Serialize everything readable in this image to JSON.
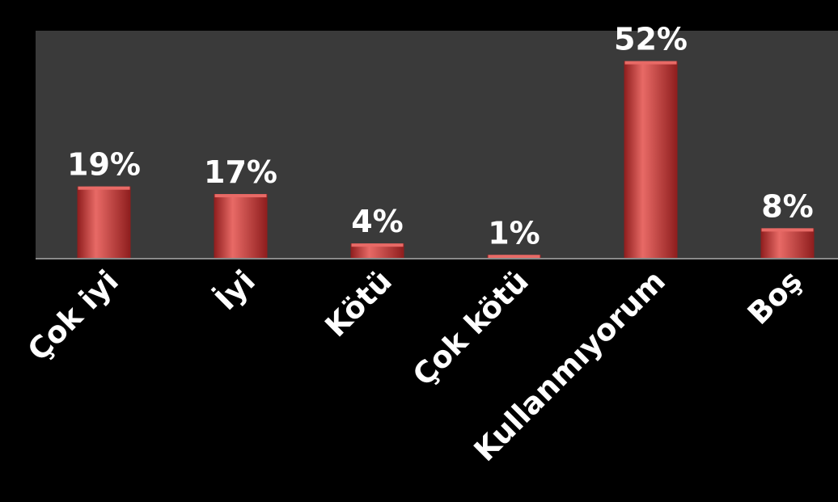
{
  "chart_data": {
    "type": "bar",
    "categories": [
      "Çok iyi",
      "İyi",
      "Kötü",
      "Çok kötü",
      "Kullanmıyorum",
      "Boş"
    ],
    "values": [
      19,
      17,
      4,
      1,
      52,
      8
    ],
    "data_labels": [
      "19%",
      "17%",
      "4%",
      "1%",
      "52%",
      "8%"
    ],
    "ylim": [
      0,
      60
    ],
    "grid": false,
    "legend": "none",
    "title": "",
    "xlabel": "",
    "ylabel": "",
    "colors": {
      "page_background": "#000000",
      "plot_background": "#3a3a3a",
      "bar": "#d64040",
      "bar_highlight": "#e86a66",
      "bar_shadow": "#8e1d1d",
      "axis": "#8a8a8a",
      "text": "#ffffff"
    }
  }
}
